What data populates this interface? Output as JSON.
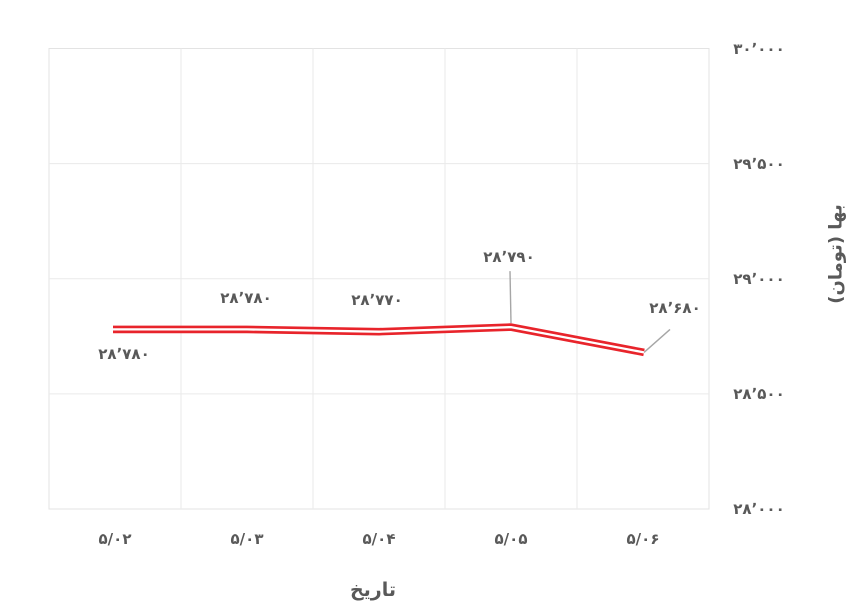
{
  "chart_data": {
    "type": "line",
    "title": "",
    "xlabel": "تاریخ",
    "ylabel": "بها (تومان)",
    "categories": [
      "۵/۰۲",
      "۵/۰۳",
      "۵/۰۴",
      "۵/۰۵",
      "۵/۰۶"
    ],
    "values": [
      28780,
      28780,
      28770,
      28790,
      28680
    ],
    "point_labels": [
      "۲۸٬۷۸۰",
      "۲۸٬۷۸۰",
      "۲۸٬۷۷۰",
      "۲۸٬۷۹۰",
      "۲۸٬۶۸۰"
    ],
    "ylim": [
      28000,
      30000
    ],
    "y_ticks": [
      {
        "value": 28000,
        "label": "۲۸٬۰۰۰"
      },
      {
        "value": 28500,
        "label": "۲۸٬۵۰۰"
      },
      {
        "value": 29000,
        "label": "۲۹٬۰۰۰"
      },
      {
        "value": 29500,
        "label": "۲۹٬۵۰۰"
      },
      {
        "value": 30000,
        "label": "۳۰٬۰۰۰"
      }
    ],
    "grid": true,
    "legend": "none",
    "line_style": "double",
    "colors": {
      "line": "#e8242b",
      "line_core": "#ffffff",
      "text": "#595959",
      "grid": "#eaeaea",
      "border": "#e3e3e3",
      "leader": "#a6a6a6",
      "background": "#ffffff"
    }
  }
}
